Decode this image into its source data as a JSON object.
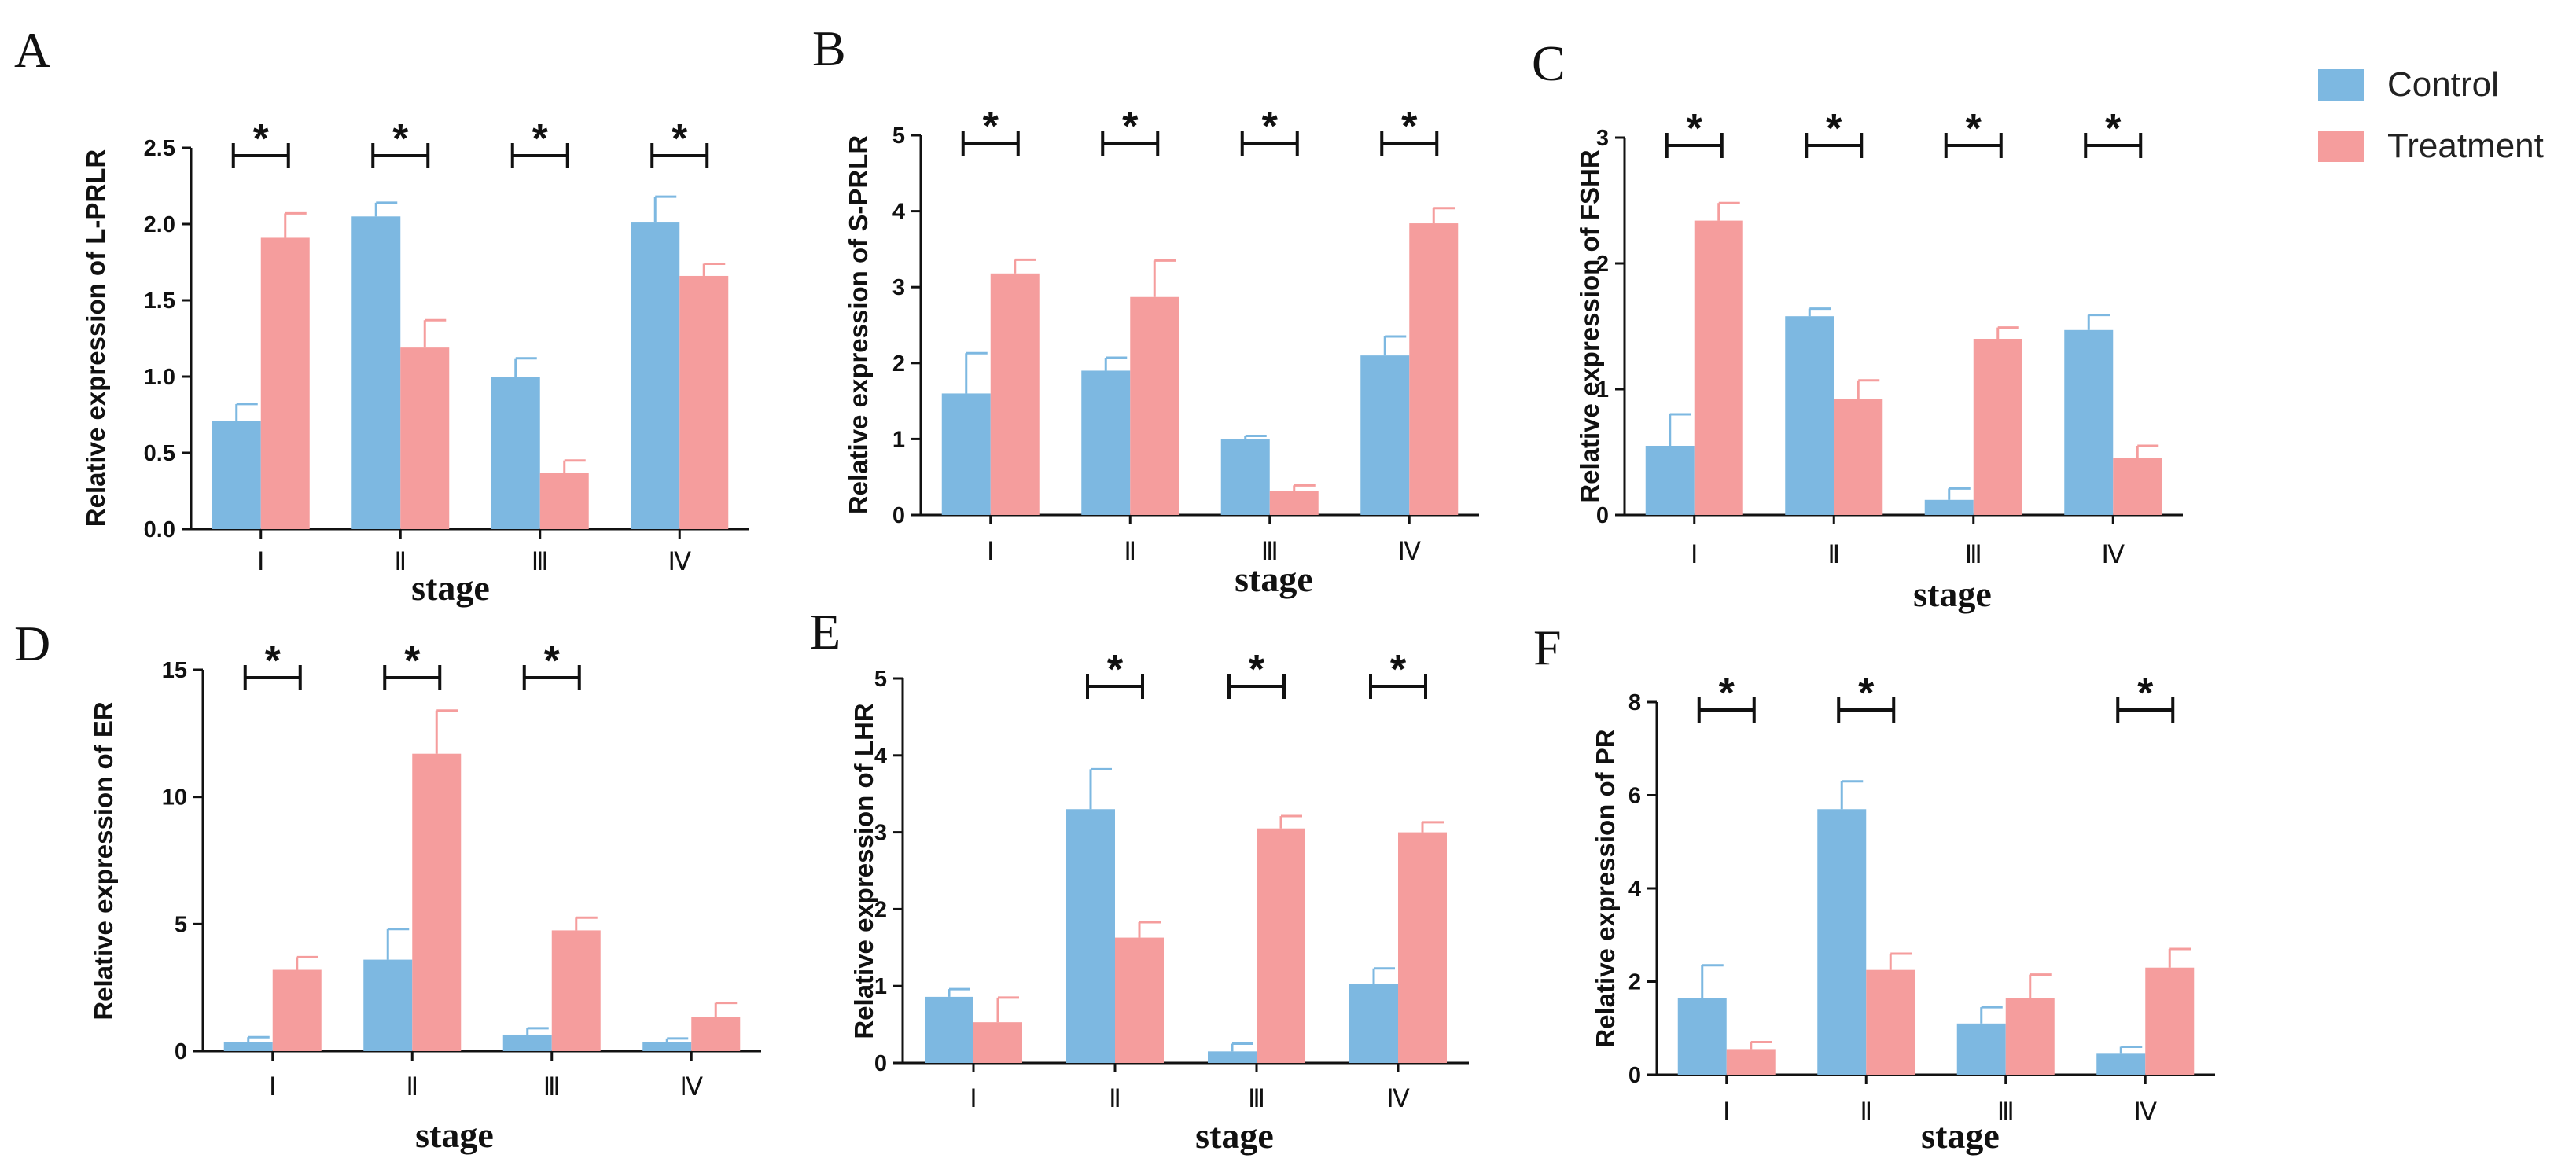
{
  "colors": {
    "control": "#7db8e1",
    "treatment": "#f59d9d",
    "axis": "#111111"
  },
  "legend": {
    "control": "Control",
    "treatment": "Treatment"
  },
  "chart_data": [
    {
      "panel": "A",
      "type": "bar",
      "ylabel": "Relative expression of L-PRLR",
      "xlabel": "stage",
      "categories": [
        "Ⅰ",
        "Ⅱ",
        "Ⅲ",
        "Ⅳ"
      ],
      "ylim": [
        0,
        2.5
      ],
      "yticks": [
        "0.0",
        "0.5",
        "1.0",
        "1.5",
        "2.0",
        "2.5"
      ],
      "series": [
        {
          "name": "Control",
          "values": [
            0.71,
            2.05,
            1.0,
            2.01
          ],
          "errors": [
            0.11,
            0.09,
            0.12,
            0.17
          ]
        },
        {
          "name": "Treatment",
          "values": [
            1.91,
            1.19,
            0.37,
            1.66
          ],
          "errors": [
            0.16,
            0.18,
            0.08,
            0.08
          ]
        }
      ],
      "significance": [
        true,
        true,
        true,
        true
      ],
      "star": "*"
    },
    {
      "panel": "B",
      "type": "bar",
      "ylabel": "Relative expression of S-PRLR",
      "xlabel": "stage",
      "categories": [
        "Ⅰ",
        "Ⅱ",
        "Ⅲ",
        "Ⅳ"
      ],
      "ylim": [
        0,
        5
      ],
      "yticks": [
        "0",
        "1",
        "2",
        "3",
        "4",
        "5"
      ],
      "series": [
        {
          "name": "Control",
          "values": [
            1.6,
            1.9,
            1.0,
            2.1
          ],
          "errors": [
            0.53,
            0.17,
            0.04,
            0.25
          ]
        },
        {
          "name": "Treatment",
          "values": [
            3.18,
            2.87,
            0.32,
            3.84
          ],
          "errors": [
            0.18,
            0.48,
            0.07,
            0.2
          ]
        }
      ],
      "significance": [
        true,
        true,
        true,
        true
      ],
      "star": "*"
    },
    {
      "panel": "C",
      "type": "bar",
      "ylabel": "Relative expression of FSHR",
      "xlabel": "stage",
      "categories": [
        "Ⅰ",
        "Ⅱ",
        "Ⅲ",
        "Ⅳ"
      ],
      "ylim": [
        0,
        3
      ],
      "yticks": [
        "0",
        "1",
        "2",
        "3"
      ],
      "series": [
        {
          "name": "Control",
          "values": [
            0.55,
            1.58,
            0.12,
            1.47
          ],
          "errors": [
            0.25,
            0.06,
            0.09,
            0.12
          ]
        },
        {
          "name": "Treatment",
          "values": [
            2.34,
            0.92,
            1.4,
            0.45
          ],
          "errors": [
            0.14,
            0.15,
            0.09,
            0.1
          ]
        }
      ],
      "significance": [
        true,
        true,
        true,
        true
      ],
      "star": "*"
    },
    {
      "panel": "D",
      "type": "bar",
      "ylabel": "Relative expression of ER",
      "xlabel": "stage",
      "categories": [
        "Ⅰ",
        "Ⅱ",
        "Ⅲ",
        "Ⅳ"
      ],
      "ylim": [
        0,
        15
      ],
      "yticks": [
        "0",
        "5",
        "10",
        "15"
      ],
      "series": [
        {
          "name": "Control",
          "values": [
            0.35,
            3.6,
            0.65,
            0.35
          ],
          "errors": [
            0.2,
            1.2,
            0.25,
            0.15
          ]
        },
        {
          "name": "Treatment",
          "values": [
            3.2,
            11.7,
            4.75,
            1.35
          ],
          "errors": [
            0.5,
            1.7,
            0.5,
            0.55
          ]
        }
      ],
      "significance": [
        true,
        true,
        true,
        false
      ],
      "star": "*"
    },
    {
      "panel": "E",
      "type": "bar",
      "ylabel": "Relative expression of LHR",
      "xlabel": "stage",
      "categories": [
        "Ⅰ",
        "Ⅱ",
        "Ⅲ",
        "Ⅳ"
      ],
      "ylim": [
        0,
        5
      ],
      "yticks": [
        "0",
        "1",
        "2",
        "3",
        "4",
        "5"
      ],
      "series": [
        {
          "name": "Control",
          "values": [
            0.86,
            3.3,
            0.15,
            1.03
          ],
          "errors": [
            0.1,
            0.52,
            0.1,
            0.2
          ]
        },
        {
          "name": "Treatment",
          "values": [
            0.53,
            1.63,
            3.05,
            3.0
          ],
          "errors": [
            0.32,
            0.2,
            0.16,
            0.13
          ]
        }
      ],
      "significance": [
        false,
        true,
        true,
        true
      ],
      "star": "*"
    },
    {
      "panel": "F",
      "type": "bar",
      "ylabel": "Relative expression of PR",
      "xlabel": "stage",
      "categories": [
        "Ⅰ",
        "Ⅱ",
        "Ⅲ",
        "Ⅳ"
      ],
      "ylim": [
        0,
        8
      ],
      "yticks": [
        "0",
        "2",
        "4",
        "6",
        "8"
      ],
      "series": [
        {
          "name": "Control",
          "values": [
            1.65,
            5.7,
            1.1,
            0.45
          ],
          "errors": [
            0.7,
            0.6,
            0.35,
            0.15
          ]
        },
        {
          "name": "Treatment",
          "values": [
            0.55,
            2.25,
            1.65,
            2.3
          ],
          "errors": [
            0.15,
            0.35,
            0.5,
            0.4
          ]
        }
      ],
      "significance": [
        true,
        true,
        false,
        true
      ],
      "star": "*"
    }
  ]
}
